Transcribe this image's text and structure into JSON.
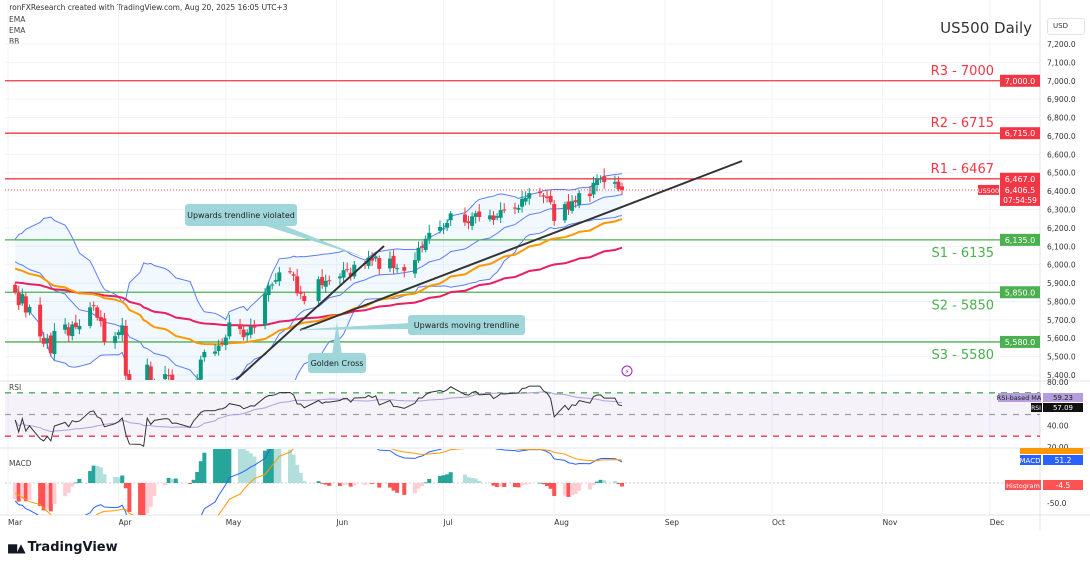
{
  "header": {
    "attribution": "IronFXResearch created with TradingView.com, Aug 20, 2025 16:05 UTC+3",
    "indicators": [
      "EMA",
      "EMA",
      "BB"
    ],
    "title": "US500 Daily",
    "currency": "USD"
  },
  "footer": {
    "logo": "TradingView"
  },
  "colors": {
    "up": "#089981",
    "down": "#f23645",
    "ema50": "#ff9800",
    "ema100": "#e91e63",
    "bb": "#5b7cfa",
    "resistance": "#f23645",
    "support": "#4caf50",
    "callout": "#9fd6da",
    "trend": "#333333"
  },
  "chart_data": [
    {
      "type": "candlestick",
      "title": "US500 Daily",
      "symbol": "US500",
      "start_date": "2025-03-03",
      "closes": [
        5850,
        5780,
        5840,
        5740,
        5770,
        5610,
        5570,
        5600,
        5520,
        5640,
        5675,
        5615,
        5675,
        5660,
        5667,
        5768,
        5777,
        5712,
        5693,
        5580,
        5611,
        5633,
        5670,
        5396,
        5074,
        5062,
        4982,
        5456,
        5268,
        5363,
        5405,
        5396,
        5275,
        5282,
        5158,
        5287,
        5375,
        5484,
        5525,
        5528,
        5560,
        5569,
        5604,
        5686,
        5650,
        5606,
        5631,
        5663,
        5659,
        5844,
        5886,
        5892,
        5916,
        5958,
        5963,
        5940,
        5844,
        5842,
        5802,
        5921,
        5889,
        5912,
        5911,
        5936,
        5970,
        5971,
        5939,
        6000,
        6005,
        6038,
        6022,
        6045,
        5977,
        6033,
        5982,
        5981,
        5967,
        6025,
        6092,
        6092,
        6141,
        6173,
        6205,
        6198,
        6227,
        6279,
        6230,
        6226,
        6263,
        6280,
        6259,
        6268,
        6243,
        6264,
        6297,
        6296,
        6305,
        6309,
        6358,
        6363,
        6389,
        6389,
        6370,
        6362,
        6339,
        6238,
        6329,
        6299,
        6345,
        6340,
        6389,
        6373,
        6445,
        6466,
        6468,
        6449,
        6449,
        6411,
        6406.5
      ],
      "ylim": [
        5400,
        7250
      ],
      "yticks": [
        "7,200.0",
        "7,100.0",
        "7,000.0",
        "6,900.0",
        "6,800.0",
        "6,700.0",
        "6,600.0",
        "6,500.0",
        "6,400.0",
        "6,300.0",
        "6,200.0",
        "6,100.0",
        "6,000.0",
        "5,900.0",
        "5,800.0",
        "5,700.0",
        "5,600.0",
        "5,500.0",
        "5,400.0"
      ],
      "ytick_values": [
        7200,
        7100,
        7000,
        6900,
        6800,
        6700,
        6600,
        6500,
        6400,
        6300,
        6200,
        6100,
        6000,
        5900,
        5800,
        5700,
        5600,
        5500,
        5400
      ],
      "xticks": [
        "Mar",
        "Apr",
        "May",
        "Jun",
        "Jul",
        "Aug",
        "Sep",
        "Oct",
        "Nov",
        "Dec"
      ],
      "levels": [
        {
          "label": "R3 - 7000",
          "value": 7000,
          "tag": "7,000.0",
          "kind": "resistance"
        },
        {
          "label": "R2 - 6715",
          "value": 6715,
          "tag": "6,715.0",
          "kind": "resistance"
        },
        {
          "label": "R1 - 6467",
          "value": 6467,
          "tag": "6,467.0",
          "kind": "resistance"
        },
        {
          "label": "S1 - 6135",
          "value": 6135,
          "tag": "6,135.0",
          "kind": "support"
        },
        {
          "label": "S2 - 5850",
          "value": 5850,
          "tag": "5,850.0",
          "kind": "support"
        },
        {
          "label": "S3 - 5580",
          "value": 5580,
          "tag": "5,580.0",
          "kind": "support"
        }
      ],
      "last_price": {
        "symbol": "US500",
        "value": "6,406.5",
        "countdown": "07:54:59"
      },
      "annotations": [
        "Upwards trendline violated",
        "Upwards moving trendline",
        "Golden Cross"
      ],
      "indicators": [
        "EMA 50",
        "EMA 100",
        "Bollinger Bands 20"
      ]
    },
    {
      "type": "line",
      "title": "RSI",
      "ylim": [
        20,
        80
      ],
      "yticks": [
        "80.00",
        "40.00",
        "20.00"
      ],
      "ytick_values": [
        80,
        40,
        20
      ],
      "levels": [
        70,
        50,
        30
      ],
      "labels": {
        "ma_label": "RSI-based MA",
        "ma_value": "59.23",
        "rsi_label": "RSI",
        "rsi_value": "57.09"
      }
    },
    {
      "type": "bar",
      "title": "MACD",
      "yticks": [
        "-50.0"
      ],
      "ytick_values": [
        -50
      ],
      "labels": {
        "macd_label": "MACD",
        "macd_value": "51.2",
        "hist_label": "Histogram",
        "hist_value": "-4.5"
      }
    }
  ]
}
